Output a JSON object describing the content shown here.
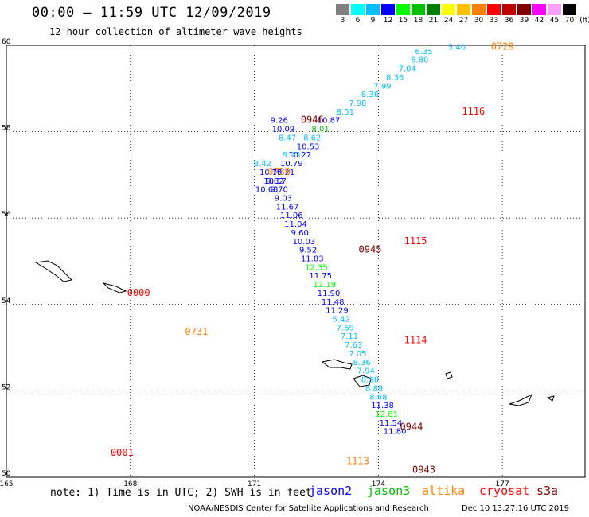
{
  "title": "00:00 – 11:59 UTC 12/09/2019",
  "subtitle": "12 hour collection of altimeter wave heights",
  "color_scale": {
    "unit_label": "(ft)",
    "items": [
      {
        "label": "3",
        "color": "#808080"
      },
      {
        "label": "6",
        "color": "#00ffff"
      },
      {
        "label": "9",
        "color": "#00bfff"
      },
      {
        "label": "12",
        "color": "#0000ff"
      },
      {
        "label": "15",
        "color": "#00ff00"
      },
      {
        "label": "18",
        "color": "#00c000"
      },
      {
        "label": "21",
        "color": "#008000"
      },
      {
        "label": "24",
        "color": "#ffff00"
      },
      {
        "label": "27",
        "color": "#ffc000"
      },
      {
        "label": "30",
        "color": "#ff8000"
      },
      {
        "label": "33",
        "color": "#ff0000"
      },
      {
        "label": "36",
        "color": "#c00000"
      },
      {
        "label": "39",
        "color": "#800000"
      },
      {
        "label": "42",
        "color": "#ff00ff"
      },
      {
        "label": "45",
        "color": "#ffa0ff"
      },
      {
        "label": "70",
        "color": "#000000"
      }
    ]
  },
  "chart_data": {
    "type": "scatter",
    "lat_labels": [
      "60",
      "58",
      "56",
      "54",
      "52",
      "50"
    ],
    "lon_labels": [
      "165",
      "168",
      "171",
      "174",
      "177"
    ],
    "lat_range": [
      50,
      60
    ],
    "lon_range": [
      165,
      179
    ],
    "points": [
      {
        "lon": 175.9,
        "lat": 59.9,
        "text": "5.40",
        "c": "#00bfff"
      },
      {
        "lon": 175.1,
        "lat": 59.8,
        "text": "6.35",
        "c": "#00bfff"
      },
      {
        "lon": 175.0,
        "lat": 59.6,
        "text": "6.80",
        "c": "#00bfff"
      },
      {
        "lon": 174.7,
        "lat": 59.4,
        "text": "7.04",
        "c": "#00bfff"
      },
      {
        "lon": 174.4,
        "lat": 59.2,
        "text": "8.36",
        "c": "#00bfff"
      },
      {
        "lon": 174.1,
        "lat": 59.0,
        "text": "7.99",
        "c": "#00bfff"
      },
      {
        "lon": 173.8,
        "lat": 58.8,
        "text": "8.36",
        "c": "#00bfff"
      },
      {
        "lon": 173.5,
        "lat": 58.6,
        "text": "7.98",
        "c": "#00bfff"
      },
      {
        "lon": 173.2,
        "lat": 58.4,
        "text": "8.51",
        "c": "#00bfff"
      },
      {
        "lon": 172.8,
        "lat": 58.2,
        "text": "10.87",
        "c": "#0000ff"
      },
      {
        "lon": 172.6,
        "lat": 58.0,
        "text": "8.01",
        "c": "#00c000"
      },
      {
        "lon": 172.4,
        "lat": 57.8,
        "text": "8.62",
        "c": "#00bfff"
      },
      {
        "lon": 172.3,
        "lat": 57.6,
        "text": "10.53",
        "c": "#0000ff"
      },
      {
        "lon": 172.1,
        "lat": 57.4,
        "text": "10.27",
        "c": "#0000ff"
      },
      {
        "lon": 171.9,
        "lat": 57.2,
        "text": "10.79",
        "c": "#0000ff"
      },
      {
        "lon": 171.7,
        "lat": 57.0,
        "text": "10.21",
        "c": "#0000ff"
      },
      {
        "lon": 171.5,
        "lat": 56.8,
        "text": "9.82",
        "c": "#0000ff"
      },
      {
        "lon": 171.3,
        "lat": 56.6,
        "text": "10.63",
        "c": "#0000ff"
      },
      {
        "lon": 171.6,
        "lat": 58.2,
        "text": "9.26",
        "c": "#0000ff"
      },
      {
        "lon": 171.7,
        "lat": 58.0,
        "text": "10.09",
        "c": "#0000ff"
      },
      {
        "lon": 171.8,
        "lat": 57.8,
        "text": "8.47",
        "c": "#00bfff"
      },
      {
        "lon": 171.9,
        "lat": 57.4,
        "text": "9.13",
        "c": "#00bfff"
      },
      {
        "lon": 171.2,
        "lat": 57.2,
        "text": "8.42",
        "c": "#00bfff"
      },
      {
        "lon": 171.4,
        "lat": 57.0,
        "text": "10.75",
        "c": "#0000ff"
      },
      {
        "lon": 171.5,
        "lat": 56.8,
        "text": "10.17",
        "c": "#0000ff"
      },
      {
        "lon": 171.6,
        "lat": 56.6,
        "text": "9.70",
        "c": "#0000ff"
      },
      {
        "lon": 171.7,
        "lat": 56.4,
        "text": "9.03",
        "c": "#0000ff"
      },
      {
        "lon": 171.8,
        "lat": 56.2,
        "text": "11.67",
        "c": "#0000ff"
      },
      {
        "lon": 171.9,
        "lat": 56.0,
        "text": "11.06",
        "c": "#0000ff"
      },
      {
        "lon": 172.0,
        "lat": 55.8,
        "text": "11.04",
        "c": "#0000ff"
      },
      {
        "lon": 172.1,
        "lat": 55.6,
        "text": "9.60",
        "c": "#0000ff"
      },
      {
        "lon": 172.2,
        "lat": 55.4,
        "text": "10.03",
        "c": "#0000ff"
      },
      {
        "lon": 172.3,
        "lat": 55.2,
        "text": "9.52",
        "c": "#0000ff"
      },
      {
        "lon": 172.4,
        "lat": 55.0,
        "text": "11.83",
        "c": "#0000ff"
      },
      {
        "lon": 172.5,
        "lat": 54.8,
        "text": "12.35",
        "c": "#00ff00"
      },
      {
        "lon": 172.6,
        "lat": 54.6,
        "text": "11.75",
        "c": "#0000ff"
      },
      {
        "lon": 172.7,
        "lat": 54.4,
        "text": "12.19",
        "c": "#00ff00"
      },
      {
        "lon": 172.8,
        "lat": 54.2,
        "text": "11.90",
        "c": "#0000ff"
      },
      {
        "lon": 172.9,
        "lat": 54.0,
        "text": "11.48",
        "c": "#0000ff"
      },
      {
        "lon": 173.0,
        "lat": 53.8,
        "text": "11.29",
        "c": "#0000ff"
      },
      {
        "lon": 173.1,
        "lat": 53.6,
        "text": "5.42",
        "c": "#00bfff"
      },
      {
        "lon": 173.2,
        "lat": 53.4,
        "text": "7.69",
        "c": "#00bfff"
      },
      {
        "lon": 173.3,
        "lat": 53.2,
        "text": "7.11",
        "c": "#00bfff"
      },
      {
        "lon": 173.4,
        "lat": 53.0,
        "text": "7.63",
        "c": "#00bfff"
      },
      {
        "lon": 173.5,
        "lat": 52.8,
        "text": "7.05",
        "c": "#00bfff"
      },
      {
        "lon": 173.6,
        "lat": 52.6,
        "text": "8.36",
        "c": "#00bfff"
      },
      {
        "lon": 173.7,
        "lat": 52.4,
        "text": "7.94",
        "c": "#00bfff"
      },
      {
        "lon": 173.8,
        "lat": 52.2,
        "text": "8.98",
        "c": "#00bfff"
      },
      {
        "lon": 173.9,
        "lat": 52.0,
        "text": "8.89",
        "c": "#00bfff"
      },
      {
        "lon": 174.0,
        "lat": 51.8,
        "text": "8.68",
        "c": "#00bfff"
      },
      {
        "lon": 174.1,
        "lat": 51.6,
        "text": "11.38",
        "c": "#0000ff"
      },
      {
        "lon": 174.2,
        "lat": 51.4,
        "text": "12.81",
        "c": "#00ff00"
      },
      {
        "lon": 174.3,
        "lat": 51.2,
        "text": "11.54",
        "c": "#0000ff"
      },
      {
        "lon": 174.4,
        "lat": 51.0,
        "text": "11.80",
        "c": "#0000ff"
      }
    ],
    "labels": [
      {
        "lon": 177.0,
        "lat": 59.9,
        "text": "0729",
        "c": "#ff8000"
      },
      {
        "lon": 176.3,
        "lat": 58.4,
        "text": "1116",
        "c": "#ff0000"
      },
      {
        "lon": 172.4,
        "lat": 58.2,
        "text": "0946",
        "c": "#800000"
      },
      {
        "lon": 171.6,
        "lat": 57.0,
        "text": "0730",
        "c": "#ff8000"
      },
      {
        "lon": 174.9,
        "lat": 55.4,
        "text": "1115",
        "c": "#ff0000"
      },
      {
        "lon": 173.8,
        "lat": 55.2,
        "text": "0945",
        "c": "#800000"
      },
      {
        "lon": 168.2,
        "lat": 54.2,
        "text": "0000",
        "c": "#ff0000"
      },
      {
        "lon": 169.6,
        "lat": 53.3,
        "text": "0731",
        "c": "#ff8000"
      },
      {
        "lon": 174.9,
        "lat": 53.1,
        "text": "1114",
        "c": "#ff0000"
      },
      {
        "lon": 174.8,
        "lat": 51.1,
        "text": "0944",
        "c": "#800000"
      },
      {
        "lon": 173.5,
        "lat": 50.3,
        "text": "1113",
        "c": "#ff8000"
      },
      {
        "lon": 175.1,
        "lat": 50.1,
        "text": "0943",
        "c": "#800000"
      },
      {
        "lon": 167.8,
        "lat": 50.5,
        "text": "0001",
        "c": "#ff0000"
      }
    ]
  },
  "footer": {
    "note": "note: 1) Time is in UTC; 2) SWH is in feet",
    "legend": [
      {
        "label": "jason2",
        "color": "#0000ff"
      },
      {
        "label": "jason3",
        "color": "#00c000"
      },
      {
        "label": "altika",
        "color": "#ff8000"
      },
      {
        "label": "cryosat",
        "color": "#ff0000"
      },
      {
        "label": "s3a",
        "color": "#800000"
      }
    ],
    "credit": "NOAA/NESDIS Center for Satellite Applications and Research",
    "timestamp": "Dec 10 13:27:16 UTC 2019"
  }
}
